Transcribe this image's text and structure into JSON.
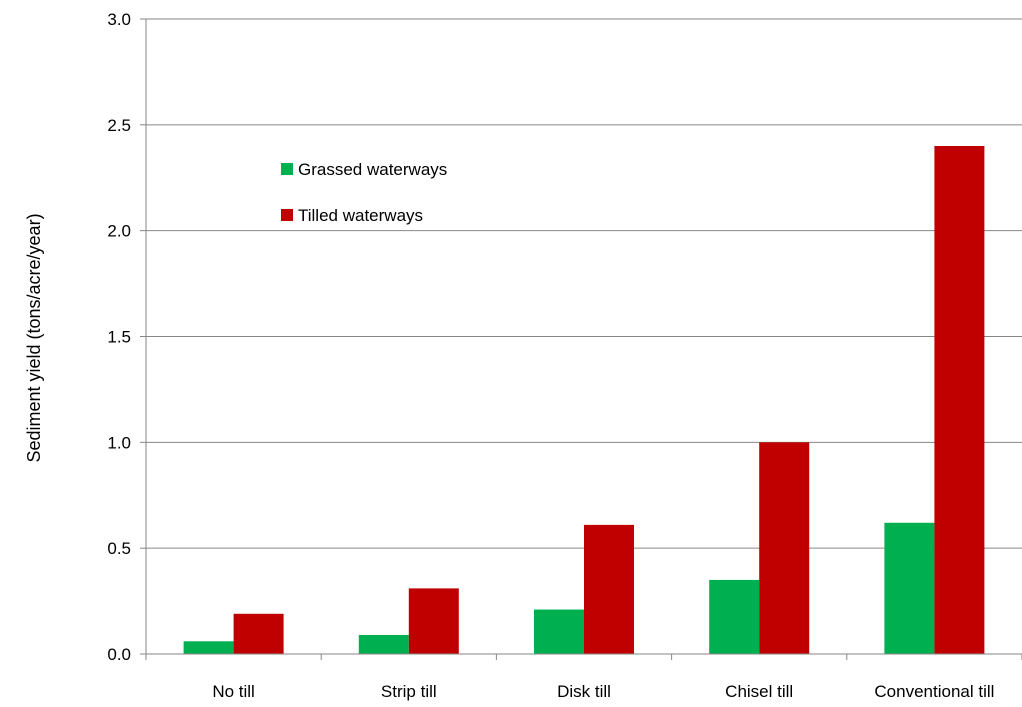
{
  "chart_data": {
    "type": "bar",
    "title": "",
    "xlabel": "",
    "ylabel": "Sediment yield (tons/acre/year)",
    "ylim": [
      0,
      3.0
    ],
    "yticks": [
      "0.0",
      "0.5",
      "1.0",
      "1.5",
      "2.0",
      "2.5",
      "3.0"
    ],
    "grid": true,
    "legend_position": "upper-left-inside",
    "categories": [
      "No till",
      "Strip till",
      "Disk till",
      "Chisel till",
      "Conventional till"
    ],
    "series": [
      {
        "name": "Grassed waterways",
        "color": "#00b050",
        "values": [
          0.06,
          0.09,
          0.21,
          0.35,
          0.62
        ]
      },
      {
        "name": "Tilled waterways",
        "color": "#c00000",
        "values": [
          0.19,
          0.31,
          0.61,
          1.0,
          2.4
        ]
      }
    ]
  }
}
